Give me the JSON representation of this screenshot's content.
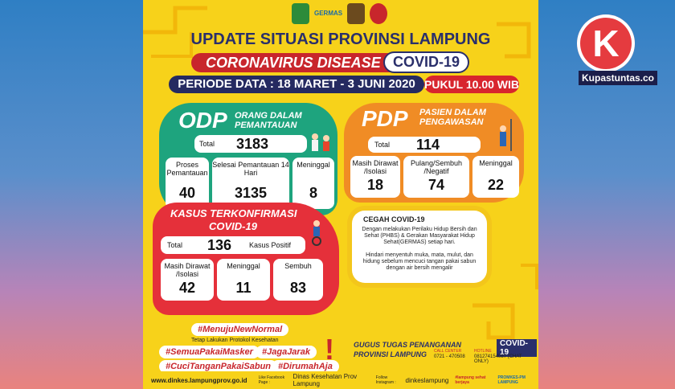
{
  "poster": {
    "germas": "GERMAS",
    "title": "UPDATE SITUASI PROVINSI LAMPUNG",
    "disease": "CORONAVIRUS DISEASE",
    "covid": "COVID-19",
    "periode": "PERIODE DATA : 18 MARET - 3 JUNI 2020",
    "pukul": "PUKUL 10.00 WIB"
  },
  "odp": {
    "code": "ODP",
    "name_line1": "ORANG DALAM",
    "name_line2": "PEMANTAUAN",
    "total_label": "Total",
    "total": "3183",
    "cols": [
      {
        "label": "Proses Pemantauan",
        "value": "40"
      },
      {
        "label": "Selesai Pemantauan 14 Hari",
        "value": "3135"
      },
      {
        "label": "Meninggal",
        "value": "8"
      }
    ]
  },
  "pdp": {
    "code": "PDP",
    "name_line1": "PASIEN DALAM",
    "name_line2": "PENGAWASAN",
    "total_label": "Total",
    "total": "114",
    "cols": [
      {
        "label": "Masih Dirawat /Isolasi",
        "value": "18"
      },
      {
        "label": "Pulang/Sembuh /Negatif",
        "value": "74"
      },
      {
        "label": "Meninggal",
        "value": "22"
      }
    ]
  },
  "kasus": {
    "title1": "KASUS TERKONFIRMASI",
    "title2": "COVID-19",
    "total_label": "Total",
    "total": "136",
    "positif": "Kasus Positif",
    "cols": [
      {
        "label": "Masih Dirawat /Isolasi",
        "value": "42"
      },
      {
        "label": "Meninggal",
        "value": "11"
      },
      {
        "label": "Sembuh",
        "value": "83"
      }
    ]
  },
  "cegah": {
    "title": "CEGAH COVID-19",
    "p1": "Dengan melakukan Perilaku Hidup Bersih dan Sehat (PHBS) & Gerakan Masyarakat Hidup Sehat(GERMAS) setiap hari.",
    "p2": "Hindari menyentuh muka, mata, mulut, dan hidung sebelum mencuci tangan pakai sabun dengan air bersih mengalir"
  },
  "tags": {
    "normal": "#MenujuNewNormal",
    "protokol": "Tetap Lakukan Protokol Kesehatan",
    "masker": "#SemuaPakaiMasker",
    "jarak": "#JagaJarak",
    "cuci": "#CuciTanganPakaiSabun",
    "rumah": "#DirumahAja"
  },
  "gugus": {
    "line1": "GUGUS TUGAS PENANGANAN",
    "covid": "COVID-19",
    "line2": "PROVINSI LAMPUNG",
    "call_label": "CALL CENTER",
    "hotline_label": "HOTLINE",
    "phone1": "0721 - 470508",
    "phone2": "081274154087 (CHAT ONLY)"
  },
  "footer": {
    "web": "www.dinkes.lampungprov.go.id",
    "fb_label": "Like Facebook Page :",
    "fb": "Dinas Kesehatan Prov Lampung",
    "ig_label": "Follow Instagram :",
    "ig": "dinkeslampung",
    "brand1": "#lampung sehat berjaya",
    "brand2": "PROMKES-PM LAMPUNG"
  },
  "watermark": {
    "letter": "K",
    "site": "Kupastuntas.co"
  },
  "colors": {
    "odp": "#1ea47e",
    "pdp": "#f08c25",
    "kasus": "#e5303a",
    "accent": "#2a2f6b"
  }
}
